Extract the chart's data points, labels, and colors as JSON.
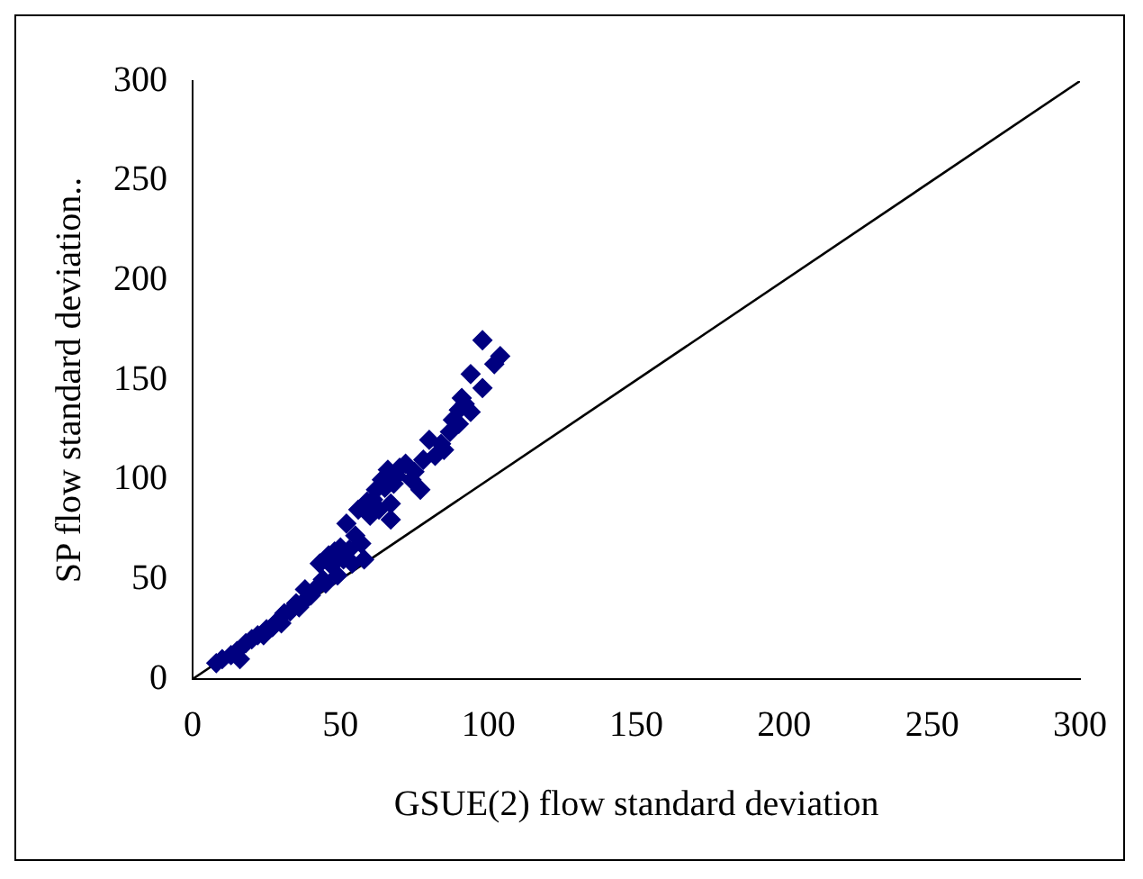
{
  "chart_data": {
    "type": "scatter",
    "xlabel": "GSUE(2) flow standard deviation",
    "ylabel": "SP flow standard deviation..",
    "xlim": [
      0,
      300
    ],
    "ylim": [
      0,
      300
    ],
    "xticks": [
      0,
      50,
      100,
      150,
      200,
      250,
      300
    ],
    "yticks": [
      0,
      50,
      100,
      150,
      200,
      250,
      300
    ],
    "grid": false,
    "legend": false,
    "series": [
      {
        "marker": "diamond",
        "color": "#000080",
        "x": [
          8,
          10,
          13,
          15,
          16,
          18,
          20,
          22,
          24,
          25,
          27,
          28,
          30,
          31,
          33,
          35,
          36,
          38,
          39,
          40,
          42,
          43,
          44,
          45,
          46,
          47,
          48,
          49,
          50,
          51,
          52,
          53,
          54,
          55,
          56,
          57,
          58,
          59,
          60,
          61,
          62,
          63,
          64,
          65,
          66,
          67,
          67,
          68,
          69,
          70,
          72,
          74,
          75,
          77,
          78,
          80,
          82,
          84,
          85,
          87,
          88,
          90,
          90,
          91,
          92,
          94,
          94,
          98,
          98,
          102,
          104
        ],
        "values": [
          8,
          10,
          12,
          14,
          10,
          18,
          20,
          22,
          22,
          25,
          26,
          28,
          28,
          33,
          34,
          38,
          36,
          45,
          41,
          42,
          46,
          58,
          50,
          48,
          62,
          57,
          64,
          52,
          66,
          60,
          78,
          65,
          58,
          72,
          85,
          68,
          60,
          89,
          82,
          90,
          95,
          85,
          100,
          96,
          105,
          80,
          88,
          98,
          102,
          106,
          108,
          100,
          104,
          95,
          110,
          120,
          112,
          118,
          115,
          124,
          130,
          128,
          135,
          141,
          138,
          134,
          153,
          170,
          146,
          158,
          162
        ]
      },
      {
        "type": "line",
        "marker": "none",
        "color": "#000000",
        "x": [
          0,
          300
        ],
        "values": [
          0,
          300
        ]
      }
    ]
  }
}
